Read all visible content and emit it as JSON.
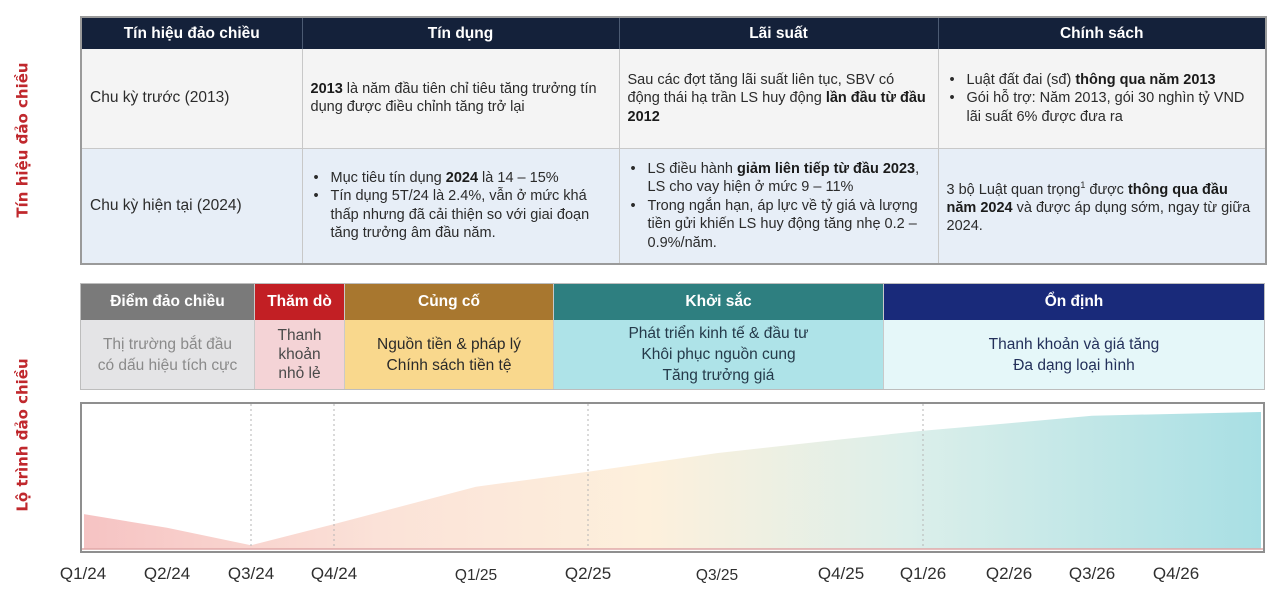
{
  "side_labels": {
    "signals": "Tín hiệu đảo chiều",
    "roadmap": "Lộ trình đảo chiều"
  },
  "signals_table": {
    "headers": [
      "Tín hiệu đảo chiều",
      "Tín dụng",
      "Lãi suất",
      "Chính sách"
    ],
    "rows": [
      {
        "label": "Chu kỳ trước (2013)",
        "credit": {
          "bold": "2013",
          "text": " là năm đầu tiên chỉ tiêu tăng trưởng tín dụng được điều chỉnh tăng trở lại"
        },
        "rate": {
          "text": "Sau các đợt tăng lãi suất liên tục, SBV có động thái hạ trần LS huy động ",
          "bold": "lần đầu từ đầu 2012"
        },
        "policy": {
          "b1_text": "Luật đất đai (sđ) ",
          "b1_bold": "thông qua năm 2013",
          "b2_text": "Gói hỗ trợ: Năm 2013, gói 30 nghìn tỷ VND lãi suất 6% được đưa ra"
        }
      },
      {
        "label": "Chu kỳ hiện tại (2024)",
        "credit": {
          "b1_pre": "Mục tiêu tín dụng ",
          "b1_bold": "2024",
          "b1_post": " là 14 – 15%",
          "b2_text": "Tín dụng 5T/24 là 2.4%, vẫn ở mức khá thấp nhưng đã cải thiện so với giai đoạn tăng trưởng âm đầu năm."
        },
        "rate": {
          "b1_pre": "LS điều hành ",
          "b1_bold": "giảm liên tiếp từ đầu 2023",
          "b1_post": ", LS cho vay hiện ở mức 9 – 11%",
          "b2_text": "Trong ngắn hạn, áp lực về tỷ giá và lượng tiền gửi khiến LS huy động tăng nhẹ 0.2 – 0.9%/năm."
        },
        "policy": {
          "pre": "3 bộ Luật quan trọng",
          "sup": "1",
          "mid": " được ",
          "bold1": "thông qua đầu năm 2024",
          "post": " và được áp dụng sớm, ngay từ giữa 2024."
        }
      }
    ]
  },
  "phases": [
    {
      "title": "Điểm đảo chiều",
      "lines": [
        "Thị trường bắt đầu",
        "có dấu hiệu tích cực"
      ],
      "head_color": "#7a7a7a",
      "body_color": "#e4e4e6",
      "text_color": "#8a8a8a"
    },
    {
      "title": "Thăm dò",
      "lines": [
        "Thanh",
        "khoản",
        "nhỏ lẻ"
      ],
      "head_color": "#c21f24",
      "body_color": "#f4d3d6",
      "text_color": "#4a4a4a"
    },
    {
      "title": "Củng cố",
      "lines": [
        "Nguồn tiền & pháp lý",
        "Chính sách tiền tệ"
      ],
      "head_color": "#a8772f",
      "body_color": "#f9d88d",
      "text_color": "#2a2a2a"
    },
    {
      "title": "Khởi sắc",
      "lines": [
        "Phát triển kinh tế & đầu tư",
        "Khôi phục nguồn cung",
        "Tăng trưởng giá"
      ],
      "head_color": "#2e7f80",
      "body_color": "#aee3e8",
      "text_color": "#253a4a"
    },
    {
      "title": "Ổn định",
      "lines": [
        "Thanh khoản và giá tăng",
        "Đa dạng loại hình"
      ],
      "head_color": "#192a7a",
      "body_color": "#e5f7f9",
      "text_color": "#23305a"
    }
  ],
  "chart_data": {
    "type": "area",
    "title": "Lộ trình đảo chiều",
    "xlabel": "",
    "ylabel": "",
    "categories": [
      "Q1/24",
      "Q2/24",
      "Q3/24",
      "Q4/24",
      "Q1/25",
      "Q2/25",
      "Q3/25",
      "Q4/25",
      "Q1/26",
      "Q2/26",
      "Q3/26",
      "Q4/26"
    ],
    "values": [
      28,
      17,
      3,
      20,
      50,
      62,
      77,
      88,
      95,
      101,
      107,
      110
    ],
    "ylim": [
      0,
      110
    ],
    "grid": "dashed vertical at phase boundaries",
    "phase_boundaries": [
      "Q3/24",
      "Q4/24",
      "Q2/25",
      "Q1/26"
    ],
    "gradient": [
      "#f6c3c3",
      "#fbe2d8",
      "#fdf0dc",
      "#dcefea",
      "#a8dfe4"
    ],
    "legend": "none"
  }
}
